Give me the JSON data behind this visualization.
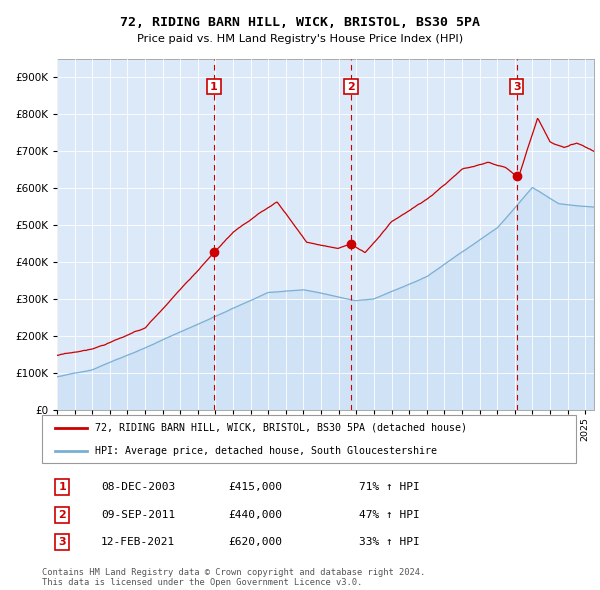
{
  "title": "72, RIDING BARN HILL, WICK, BRISTOL, BS30 5PA",
  "subtitle": "Price paid vs. HM Land Registry's House Price Index (HPI)",
  "red_label": "72, RIDING BARN HILL, WICK, BRISTOL, BS30 5PA (detached house)",
  "blue_label": "HPI: Average price, detached house, South Gloucestershire",
  "transactions": [
    {
      "num": 1,
      "date": "08-DEC-2003",
      "price": 415000,
      "hpi_pct": "71% ↑ HPI",
      "date_val": 2003.92
    },
    {
      "num": 2,
      "date": "09-SEP-2011",
      "price": 440000,
      "hpi_pct": "47% ↑ HPI",
      "date_val": 2011.69
    },
    {
      "num": 3,
      "date": "12-FEB-2021",
      "price": 620000,
      "hpi_pct": "33% ↑ HPI",
      "date_val": 2021.12
    }
  ],
  "footer": "Contains HM Land Registry data © Crown copyright and database right 2024.\nThis data is licensed under the Open Government Licence v3.0.",
  "bg_color": "#dce9f8",
  "red_color": "#cc0000",
  "blue_color": "#7bafd4",
  "ylim": [
    0,
    950000
  ],
  "xlim_start": 1995.0,
  "xlim_end": 2025.5,
  "yticks": [
    0,
    100000,
    200000,
    300000,
    400000,
    500000,
    600000,
    700000,
    800000,
    900000
  ]
}
